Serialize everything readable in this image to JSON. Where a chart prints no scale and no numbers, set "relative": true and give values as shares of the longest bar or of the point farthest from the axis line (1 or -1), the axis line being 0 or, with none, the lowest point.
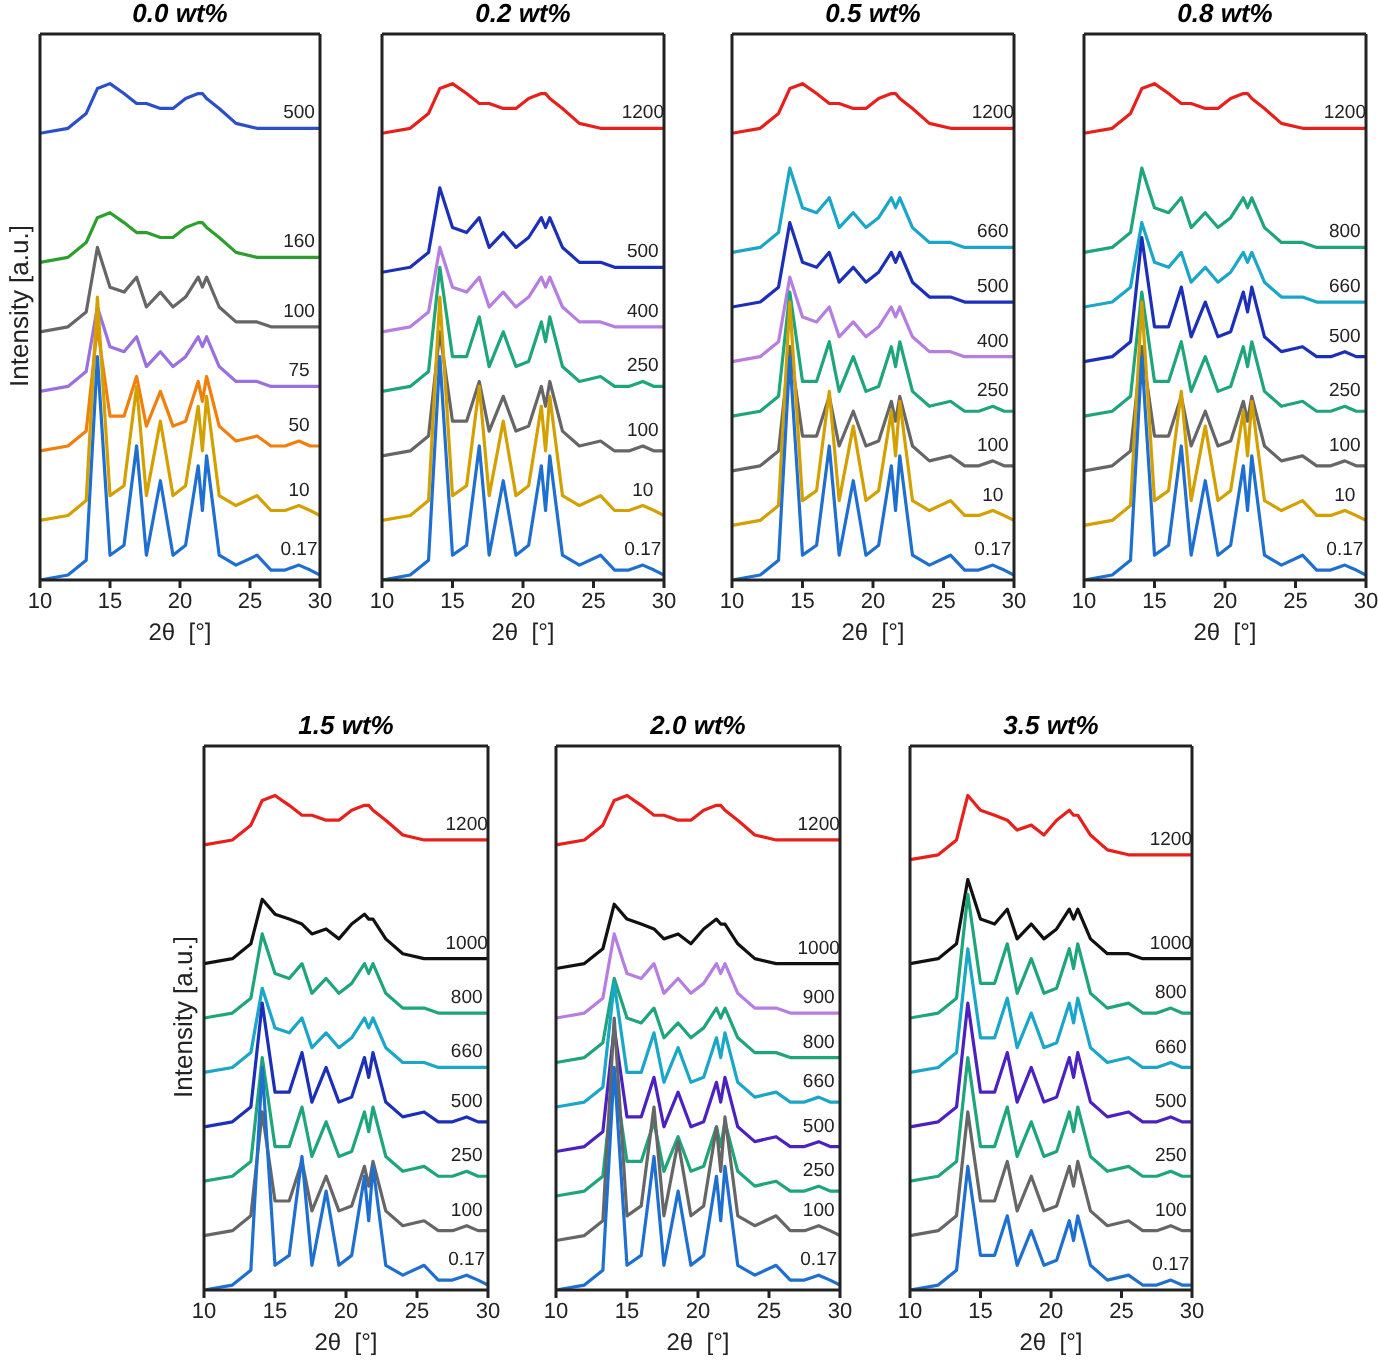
{
  "chart_data": [
    {
      "type": "line",
      "title": "0.0 wt%",
      "xlabel": "2θ  [°]",
      "ylabel": "Intensity  [a.u.]",
      "relative": true,
      "xlim": [
        10,
        30
      ],
      "xticks": [
        10,
        15,
        20,
        25,
        30
      ],
      "tick_labels": "x",
      "legend": false,
      "grid": false,
      "marker": "none",
      "x": [
        10,
        12,
        13.3,
        14.1,
        15,
        16,
        16.9,
        17.6,
        18.6,
        19.5,
        20.4,
        21.3,
        21.6,
        21.9,
        22.8,
        24,
        25.5,
        26.5,
        27.5,
        28.5,
        29.3,
        30
      ],
      "series": [
        {
          "name": "500",
          "color": "#2a4fc8",
          "values": [
            0.9,
            0.91,
            0.94,
            0.99,
            1,
            0.98,
            0.96,
            0.96,
            0.95,
            0.95,
            0.97,
            0.98,
            0.98,
            0.97,
            0.95,
            0.92,
            0.91,
            0.91,
            0.91,
            0.91,
            0.91,
            0.91
          ]
        },
        {
          "name": "160",
          "color": "#2ca02c",
          "values": [
            0.64,
            0.65,
            0.68,
            0.73,
            0.74,
            0.72,
            0.7,
            0.7,
            0.69,
            0.69,
            0.71,
            0.72,
            0.72,
            0.71,
            0.69,
            0.66,
            0.65,
            0.65,
            0.65,
            0.65,
            0.65,
            0.65
          ]
        },
        {
          "name": "100",
          "color": "#666666",
          "values": [
            0.5,
            0.51,
            0.54,
            0.67,
            0.59,
            0.58,
            0.61,
            0.55,
            0.58,
            0.55,
            0.57,
            0.61,
            0.59,
            0.61,
            0.55,
            0.52,
            0.52,
            0.51,
            0.51,
            0.51,
            0.51,
            0.51
          ]
        },
        {
          "name": "75",
          "color": "#9a6fe0",
          "values": [
            0.38,
            0.39,
            0.42,
            0.55,
            0.47,
            0.46,
            0.49,
            0.43,
            0.46,
            0.43,
            0.45,
            0.49,
            0.47,
            0.49,
            0.43,
            0.4,
            0.4,
            0.39,
            0.39,
            0.39,
            0.39,
            0.39
          ]
        },
        {
          "name": "50",
          "color": "#f07f0c",
          "values": [
            0.26,
            0.27,
            0.3,
            0.51,
            0.33,
            0.33,
            0.41,
            0.31,
            0.38,
            0.31,
            0.32,
            0.4,
            0.36,
            0.41,
            0.31,
            0.28,
            0.29,
            0.27,
            0.27,
            0.28,
            0.27,
            0.27
          ]
        },
        {
          "name": "10",
          "color": "#d4a000",
          "values": [
            0.12,
            0.13,
            0.16,
            0.57,
            0.17,
            0.19,
            0.39,
            0.17,
            0.32,
            0.17,
            0.19,
            0.35,
            0.26,
            0.37,
            0.17,
            0.15,
            0.17,
            0.14,
            0.14,
            0.15,
            0.14,
            0.13
          ]
        },
        {
          "name": "0.17",
          "color": "#1f6fd0",
          "values": [
            0,
            0.01,
            0.04,
            0.45,
            0.05,
            0.07,
            0.27,
            0.05,
            0.2,
            0.05,
            0.07,
            0.23,
            0.14,
            0.25,
            0.05,
            0.03,
            0.05,
            0.02,
            0.02,
            0.03,
            0.02,
            0.01
          ]
        }
      ]
    },
    {
      "type": "line",
      "title": "0.2 wt%",
      "xlabel": "2θ  [°]",
      "relative": true,
      "xlim": [
        10,
        30
      ],
      "xticks": [
        10,
        15,
        20,
        25,
        30
      ],
      "tick_labels": "x",
      "legend": false,
      "grid": false,
      "marker": "none",
      "x": [
        10,
        12,
        13.3,
        14.1,
        15,
        16,
        16.9,
        17.6,
        18.6,
        19.5,
        20.4,
        21.3,
        21.6,
        21.9,
        22.8,
        24,
        25.5,
        26.5,
        27.5,
        28.5,
        29.3,
        30
      ],
      "series": [
        {
          "name": "1200",
          "color": "#e8201c",
          "values": [
            0.9,
            0.91,
            0.94,
            0.99,
            1,
            0.98,
            0.96,
            0.96,
            0.95,
            0.95,
            0.97,
            0.98,
            0.98,
            0.97,
            0.95,
            0.92,
            0.91,
            0.91,
            0.91,
            0.91,
            0.91,
            0.91
          ]
        },
        {
          "name": "500",
          "color": "#1c2fb8",
          "values": [
            0.62,
            0.63,
            0.66,
            0.79,
            0.71,
            0.7,
            0.73,
            0.67,
            0.7,
            0.67,
            0.69,
            0.73,
            0.71,
            0.73,
            0.67,
            0.64,
            0.64,
            0.63,
            0.63,
            0.63,
            0.63,
            0.63
          ]
        },
        {
          "name": "400",
          "color": "#b57ee0",
          "values": [
            0.5,
            0.51,
            0.54,
            0.67,
            0.59,
            0.58,
            0.61,
            0.55,
            0.58,
            0.55,
            0.57,
            0.61,
            0.59,
            0.61,
            0.55,
            0.52,
            0.52,
            0.51,
            0.51,
            0.51,
            0.51,
            0.51
          ]
        },
        {
          "name": "250",
          "color": "#1fa57a",
          "values": [
            0.38,
            0.39,
            0.42,
            0.63,
            0.45,
            0.45,
            0.53,
            0.43,
            0.5,
            0.43,
            0.44,
            0.52,
            0.48,
            0.53,
            0.43,
            0.4,
            0.41,
            0.39,
            0.39,
            0.4,
            0.39,
            0.39
          ]
        },
        {
          "name": "100",
          "color": "#666666",
          "values": [
            0.25,
            0.26,
            0.29,
            0.5,
            0.32,
            0.32,
            0.4,
            0.3,
            0.37,
            0.3,
            0.31,
            0.39,
            0.35,
            0.4,
            0.3,
            0.27,
            0.28,
            0.26,
            0.26,
            0.27,
            0.26,
            0.26
          ]
        },
        {
          "name": "10",
          "color": "#d4a000",
          "values": [
            0.12,
            0.13,
            0.16,
            0.57,
            0.17,
            0.19,
            0.39,
            0.17,
            0.32,
            0.17,
            0.19,
            0.35,
            0.26,
            0.37,
            0.17,
            0.15,
            0.17,
            0.14,
            0.14,
            0.15,
            0.14,
            0.13
          ]
        },
        {
          "name": "0.17",
          "color": "#1f6fd0",
          "values": [
            0,
            0.01,
            0.04,
            0.45,
            0.05,
            0.07,
            0.27,
            0.05,
            0.2,
            0.05,
            0.07,
            0.23,
            0.14,
            0.25,
            0.05,
            0.03,
            0.05,
            0.02,
            0.02,
            0.03,
            0.02,
            0.01
          ]
        }
      ]
    },
    {
      "type": "line",
      "title": "0.5 wt%",
      "xlabel": "2θ  [°]",
      "relative": true,
      "xlim": [
        10,
        30
      ],
      "xticks": [
        10,
        15,
        20,
        25,
        30
      ],
      "tick_labels": "x",
      "legend": false,
      "grid": false,
      "marker": "none",
      "x": [
        10,
        12,
        13.3,
        14.1,
        15,
        16,
        16.9,
        17.6,
        18.6,
        19.5,
        20.4,
        21.3,
        21.6,
        21.9,
        22.8,
        24,
        25.5,
        26.5,
        27.5,
        28.5,
        29.3,
        30
      ],
      "series": [
        {
          "name": "1200",
          "color": "#e8201c",
          "values": [
            0.9,
            0.91,
            0.94,
            0.99,
            1,
            0.98,
            0.96,
            0.96,
            0.95,
            0.95,
            0.97,
            0.98,
            0.98,
            0.97,
            0.95,
            0.92,
            0.91,
            0.91,
            0.91,
            0.91,
            0.91,
            0.91
          ]
        },
        {
          "name": "660",
          "color": "#1aa6c8",
          "values": [
            0.66,
            0.67,
            0.7,
            0.83,
            0.75,
            0.74,
            0.77,
            0.71,
            0.74,
            0.71,
            0.73,
            0.77,
            0.75,
            0.77,
            0.71,
            0.68,
            0.68,
            0.67,
            0.67,
            0.67,
            0.67,
            0.67
          ]
        },
        {
          "name": "500",
          "color": "#1c2fb8",
          "values": [
            0.55,
            0.56,
            0.59,
            0.72,
            0.64,
            0.63,
            0.66,
            0.6,
            0.63,
            0.6,
            0.62,
            0.66,
            0.64,
            0.66,
            0.6,
            0.57,
            0.57,
            0.56,
            0.56,
            0.56,
            0.56,
            0.56
          ]
        },
        {
          "name": "400",
          "color": "#b57ee0",
          "values": [
            0.44,
            0.45,
            0.48,
            0.61,
            0.53,
            0.52,
            0.55,
            0.49,
            0.52,
            0.49,
            0.51,
            0.55,
            0.53,
            0.55,
            0.49,
            0.46,
            0.46,
            0.45,
            0.45,
            0.45,
            0.45,
            0.45
          ]
        },
        {
          "name": "250",
          "color": "#1fa57a",
          "values": [
            0.33,
            0.34,
            0.37,
            0.58,
            0.4,
            0.4,
            0.48,
            0.38,
            0.45,
            0.38,
            0.39,
            0.47,
            0.43,
            0.48,
            0.38,
            0.35,
            0.36,
            0.34,
            0.34,
            0.35,
            0.34,
            0.34
          ]
        },
        {
          "name": "100",
          "color": "#666666",
          "values": [
            0.22,
            0.23,
            0.26,
            0.47,
            0.29,
            0.29,
            0.37,
            0.27,
            0.34,
            0.27,
            0.28,
            0.36,
            0.32,
            0.37,
            0.27,
            0.24,
            0.25,
            0.23,
            0.23,
            0.24,
            0.23,
            0.23
          ]
        },
        {
          "name": "10",
          "color": "#d4a000",
          "values": [
            0.11,
            0.12,
            0.15,
            0.56,
            0.16,
            0.18,
            0.38,
            0.16,
            0.31,
            0.16,
            0.18,
            0.34,
            0.25,
            0.36,
            0.16,
            0.14,
            0.16,
            0.13,
            0.13,
            0.14,
            0.13,
            0.12
          ]
        },
        {
          "name": "0.17",
          "color": "#1f6fd0",
          "values": [
            0,
            0.01,
            0.04,
            0.45,
            0.05,
            0.07,
            0.27,
            0.05,
            0.2,
            0.05,
            0.07,
            0.23,
            0.14,
            0.25,
            0.05,
            0.03,
            0.05,
            0.02,
            0.02,
            0.03,
            0.02,
            0.01
          ]
        }
      ]
    },
    {
      "type": "line",
      "title": "0.8 wt%",
      "xlabel": "2θ  [°]",
      "relative": true,
      "xlim": [
        10,
        30
      ],
      "xticks": [
        10,
        15,
        20,
        25,
        30
      ],
      "tick_labels": "x",
      "legend": false,
      "grid": false,
      "marker": "none",
      "x": [
        10,
        12,
        13.3,
        14.1,
        15,
        16,
        16.9,
        17.6,
        18.6,
        19.5,
        20.4,
        21.3,
        21.6,
        21.9,
        22.8,
        24,
        25.5,
        26.5,
        27.5,
        28.5,
        29.3,
        30
      ],
      "series": [
        {
          "name": "1200",
          "color": "#e8201c",
          "values": [
            0.9,
            0.91,
            0.94,
            0.99,
            1,
            0.98,
            0.96,
            0.96,
            0.95,
            0.95,
            0.97,
            0.98,
            0.98,
            0.97,
            0.95,
            0.92,
            0.91,
            0.91,
            0.91,
            0.91,
            0.91,
            0.91
          ]
        },
        {
          "name": "800",
          "color": "#1fa57a",
          "values": [
            0.66,
            0.67,
            0.7,
            0.83,
            0.75,
            0.74,
            0.77,
            0.71,
            0.74,
            0.71,
            0.73,
            0.77,
            0.75,
            0.77,
            0.71,
            0.68,
            0.68,
            0.67,
            0.67,
            0.67,
            0.67,
            0.67
          ]
        },
        {
          "name": "660",
          "color": "#1aa6c8",
          "values": [
            0.55,
            0.56,
            0.59,
            0.72,
            0.64,
            0.63,
            0.66,
            0.6,
            0.63,
            0.6,
            0.62,
            0.66,
            0.64,
            0.66,
            0.6,
            0.57,
            0.57,
            0.56,
            0.56,
            0.56,
            0.56,
            0.56
          ]
        },
        {
          "name": "500",
          "color": "#1c2fb8",
          "values": [
            0.44,
            0.45,
            0.48,
            0.69,
            0.51,
            0.51,
            0.59,
            0.49,
            0.56,
            0.49,
            0.5,
            0.58,
            0.54,
            0.59,
            0.49,
            0.46,
            0.47,
            0.45,
            0.45,
            0.46,
            0.45,
            0.45
          ]
        },
        {
          "name": "250",
          "color": "#1fa57a",
          "values": [
            0.33,
            0.34,
            0.37,
            0.58,
            0.4,
            0.4,
            0.48,
            0.38,
            0.45,
            0.38,
            0.39,
            0.47,
            0.43,
            0.48,
            0.38,
            0.35,
            0.36,
            0.34,
            0.34,
            0.35,
            0.34,
            0.34
          ]
        },
        {
          "name": "100",
          "color": "#666666",
          "values": [
            0.22,
            0.23,
            0.26,
            0.47,
            0.29,
            0.29,
            0.37,
            0.27,
            0.34,
            0.27,
            0.28,
            0.36,
            0.32,
            0.37,
            0.27,
            0.24,
            0.25,
            0.23,
            0.23,
            0.24,
            0.23,
            0.23
          ]
        },
        {
          "name": "10",
          "color": "#d4a000",
          "values": [
            0.11,
            0.12,
            0.15,
            0.56,
            0.16,
            0.18,
            0.38,
            0.16,
            0.31,
            0.16,
            0.18,
            0.34,
            0.25,
            0.36,
            0.16,
            0.14,
            0.16,
            0.13,
            0.13,
            0.14,
            0.13,
            0.12
          ]
        },
        {
          "name": "0.17",
          "color": "#1f6fd0",
          "values": [
            0,
            0.01,
            0.04,
            0.45,
            0.05,
            0.07,
            0.27,
            0.05,
            0.2,
            0.05,
            0.07,
            0.23,
            0.14,
            0.25,
            0.05,
            0.03,
            0.05,
            0.02,
            0.02,
            0.03,
            0.02,
            0.01
          ]
        }
      ]
    },
    {
      "type": "line",
      "title": "1.5 wt%",
      "xlabel": "2θ  [°]",
      "ylabel": "Intensity  [a.u.]",
      "relative": true,
      "xlim": [
        10,
        30
      ],
      "xticks": [
        10,
        15,
        20,
        25,
        30
      ],
      "tick_labels": "x",
      "legend": false,
      "grid": false,
      "marker": "none",
      "x": [
        10,
        12,
        13.3,
        14.1,
        15,
        16,
        16.9,
        17.6,
        18.6,
        19.5,
        20.4,
        21.3,
        21.6,
        21.9,
        22.8,
        24,
        25.5,
        26.5,
        27.5,
        28.5,
        29.3,
        30
      ],
      "series": [
        {
          "name": "1200",
          "color": "#e8201c",
          "values": [
            0.9,
            0.91,
            0.94,
            0.99,
            1,
            0.98,
            0.96,
            0.96,
            0.95,
            0.95,
            0.97,
            0.98,
            0.98,
            0.97,
            0.95,
            0.92,
            0.91,
            0.91,
            0.91,
            0.91,
            0.91,
            0.91
          ]
        },
        {
          "name": "1000",
          "color": "#111111",
          "values": [
            0.66,
            0.67,
            0.7,
            0.79,
            0.76,
            0.75,
            0.74,
            0.72,
            0.73,
            0.71,
            0.74,
            0.76,
            0.75,
            0.75,
            0.71,
            0.68,
            0.67,
            0.67,
            0.67,
            0.67,
            0.67,
            0.67
          ]
        },
        {
          "name": "800",
          "color": "#1fa57a",
          "values": [
            0.55,
            0.56,
            0.59,
            0.72,
            0.64,
            0.63,
            0.66,
            0.6,
            0.63,
            0.6,
            0.62,
            0.66,
            0.64,
            0.66,
            0.6,
            0.57,
            0.57,
            0.56,
            0.56,
            0.56,
            0.56,
            0.56
          ]
        },
        {
          "name": "660",
          "color": "#1aa6c8",
          "values": [
            0.44,
            0.45,
            0.48,
            0.61,
            0.53,
            0.52,
            0.55,
            0.49,
            0.52,
            0.49,
            0.51,
            0.55,
            0.53,
            0.55,
            0.49,
            0.46,
            0.46,
            0.45,
            0.45,
            0.45,
            0.45,
            0.45
          ]
        },
        {
          "name": "500",
          "color": "#1c2fb8",
          "values": [
            0.33,
            0.34,
            0.37,
            0.58,
            0.4,
            0.4,
            0.48,
            0.38,
            0.45,
            0.38,
            0.39,
            0.47,
            0.43,
            0.48,
            0.38,
            0.35,
            0.36,
            0.34,
            0.34,
            0.35,
            0.34,
            0.34
          ]
        },
        {
          "name": "250",
          "color": "#1fa57a",
          "values": [
            0.22,
            0.23,
            0.26,
            0.47,
            0.29,
            0.29,
            0.37,
            0.27,
            0.34,
            0.27,
            0.28,
            0.36,
            0.32,
            0.37,
            0.27,
            0.24,
            0.25,
            0.23,
            0.23,
            0.24,
            0.23,
            0.23
          ]
        },
        {
          "name": "100",
          "color": "#666666",
          "values": [
            0.11,
            0.12,
            0.15,
            0.36,
            0.18,
            0.18,
            0.26,
            0.16,
            0.23,
            0.16,
            0.17,
            0.25,
            0.21,
            0.26,
            0.16,
            0.13,
            0.14,
            0.12,
            0.12,
            0.13,
            0.12,
            0.12
          ]
        },
        {
          "name": "0.17",
          "color": "#1f6fd0",
          "values": [
            0,
            0.01,
            0.04,
            0.45,
            0.05,
            0.07,
            0.27,
            0.05,
            0.2,
            0.05,
            0.07,
            0.23,
            0.14,
            0.25,
            0.05,
            0.03,
            0.05,
            0.02,
            0.02,
            0.03,
            0.02,
            0.01
          ]
        }
      ]
    },
    {
      "type": "line",
      "title": "2.0 wt%",
      "xlabel": "2θ  [°]",
      "relative": true,
      "xlim": [
        10,
        30
      ],
      "xticks": [
        10,
        15,
        20,
        25,
        30
      ],
      "tick_labels": "x",
      "legend": false,
      "grid": false,
      "marker": "none",
      "x": [
        10,
        12,
        13.3,
        14.1,
        15,
        16,
        16.9,
        17.6,
        18.6,
        19.5,
        20.4,
        21.3,
        21.6,
        21.9,
        22.8,
        24,
        25.5,
        26.5,
        27.5,
        28.5,
        29.3,
        30
      ],
      "series": [
        {
          "name": "1200",
          "color": "#e8201c",
          "values": [
            0.9,
            0.91,
            0.94,
            0.99,
            1,
            0.98,
            0.96,
            0.96,
            0.95,
            0.95,
            0.97,
            0.98,
            0.98,
            0.97,
            0.95,
            0.92,
            0.91,
            0.91,
            0.91,
            0.91,
            0.91,
            0.91
          ]
        },
        {
          "name": "1000",
          "color": "#111111",
          "values": [
            0.65,
            0.66,
            0.69,
            0.78,
            0.75,
            0.74,
            0.73,
            0.71,
            0.72,
            0.7,
            0.73,
            0.75,
            0.74,
            0.74,
            0.7,
            0.67,
            0.66,
            0.66,
            0.66,
            0.66,
            0.66,
            0.66
          ]
        },
        {
          "name": "900",
          "color": "#b57ee0",
          "values": [
            0.55,
            0.56,
            0.59,
            0.72,
            0.64,
            0.63,
            0.66,
            0.6,
            0.63,
            0.6,
            0.62,
            0.66,
            0.64,
            0.66,
            0.6,
            0.57,
            0.57,
            0.56,
            0.56,
            0.56,
            0.56,
            0.56
          ]
        },
        {
          "name": "800",
          "color": "#1fa57a",
          "values": [
            0.46,
            0.47,
            0.5,
            0.63,
            0.55,
            0.54,
            0.57,
            0.51,
            0.54,
            0.51,
            0.53,
            0.57,
            0.55,
            0.57,
            0.51,
            0.48,
            0.48,
            0.47,
            0.47,
            0.47,
            0.47,
            0.47
          ]
        },
        {
          "name": "660",
          "color": "#1aa6c8",
          "values": [
            0.37,
            0.38,
            0.41,
            0.62,
            0.44,
            0.44,
            0.52,
            0.42,
            0.49,
            0.42,
            0.43,
            0.51,
            0.47,
            0.52,
            0.42,
            0.39,
            0.4,
            0.38,
            0.38,
            0.39,
            0.38,
            0.38
          ]
        },
        {
          "name": "500",
          "color": "#4b22c0",
          "values": [
            0.28,
            0.29,
            0.32,
            0.53,
            0.35,
            0.35,
            0.43,
            0.33,
            0.4,
            0.33,
            0.34,
            0.42,
            0.38,
            0.43,
            0.33,
            0.3,
            0.31,
            0.29,
            0.29,
            0.3,
            0.29,
            0.29
          ]
        },
        {
          "name": "250",
          "color": "#1fa57a",
          "values": [
            0.19,
            0.2,
            0.23,
            0.44,
            0.26,
            0.26,
            0.34,
            0.24,
            0.31,
            0.24,
            0.25,
            0.33,
            0.29,
            0.34,
            0.24,
            0.21,
            0.22,
            0.2,
            0.2,
            0.21,
            0.2,
            0.2
          ]
        },
        {
          "name": "100",
          "color": "#666666",
          "values": [
            0.1,
            0.11,
            0.14,
            0.55,
            0.15,
            0.17,
            0.37,
            0.15,
            0.3,
            0.15,
            0.17,
            0.33,
            0.24,
            0.35,
            0.15,
            0.13,
            0.15,
            0.12,
            0.12,
            0.13,
            0.12,
            0.11
          ]
        },
        {
          "name": "0.17",
          "color": "#1f6fd0",
          "values": [
            0,
            0.01,
            0.04,
            0.45,
            0.05,
            0.07,
            0.27,
            0.05,
            0.2,
            0.05,
            0.07,
            0.23,
            0.14,
            0.25,
            0.05,
            0.03,
            0.05,
            0.02,
            0.02,
            0.03,
            0.02,
            0.01
          ]
        }
      ]
    },
    {
      "type": "line",
      "title": "3.5 wt%",
      "xlabel": "2θ  [°]",
      "relative": true,
      "xlim": [
        10,
        30
      ],
      "xticks": [
        10,
        15,
        20,
        25,
        30
      ],
      "tick_labels": "x",
      "legend": false,
      "grid": false,
      "marker": "none",
      "x": [
        10,
        12,
        13.3,
        14.1,
        15,
        16,
        16.9,
        17.6,
        18.6,
        19.5,
        20.4,
        21.3,
        21.6,
        21.9,
        22.8,
        24,
        25.5,
        26.5,
        27.5,
        28.5,
        29.3,
        30
      ],
      "series": [
        {
          "name": "1200",
          "color": "#e8201c",
          "values": [
            0.87,
            0.88,
            0.91,
            1,
            0.97,
            0.96,
            0.95,
            0.93,
            0.94,
            0.92,
            0.95,
            0.97,
            0.96,
            0.96,
            0.92,
            0.89,
            0.88,
            0.88,
            0.88,
            0.88,
            0.88,
            0.88
          ]
        },
        {
          "name": "1000",
          "color": "#111111",
          "values": [
            0.66,
            0.67,
            0.7,
            0.83,
            0.75,
            0.74,
            0.77,
            0.71,
            0.74,
            0.71,
            0.73,
            0.77,
            0.75,
            0.77,
            0.71,
            0.68,
            0.68,
            0.67,
            0.67,
            0.67,
            0.67,
            0.67
          ]
        },
        {
          "name": "800",
          "color": "#1fa57a",
          "values": [
            0.55,
            0.56,
            0.59,
            0.8,
            0.62,
            0.62,
            0.7,
            0.6,
            0.67,
            0.6,
            0.61,
            0.69,
            0.65,
            0.7,
            0.6,
            0.57,
            0.58,
            0.56,
            0.56,
            0.57,
            0.56,
            0.56
          ]
        },
        {
          "name": "660",
          "color": "#1aa6c8",
          "values": [
            0.44,
            0.45,
            0.48,
            0.69,
            0.51,
            0.51,
            0.59,
            0.49,
            0.56,
            0.49,
            0.5,
            0.58,
            0.54,
            0.59,
            0.49,
            0.46,
            0.47,
            0.45,
            0.45,
            0.46,
            0.45,
            0.45
          ]
        },
        {
          "name": "500",
          "color": "#4b22c0",
          "values": [
            0.33,
            0.34,
            0.37,
            0.58,
            0.4,
            0.4,
            0.48,
            0.38,
            0.45,
            0.38,
            0.39,
            0.47,
            0.43,
            0.48,
            0.38,
            0.35,
            0.36,
            0.34,
            0.34,
            0.35,
            0.34,
            0.34
          ]
        },
        {
          "name": "250",
          "color": "#1fa57a",
          "values": [
            0.22,
            0.23,
            0.26,
            0.47,
            0.29,
            0.29,
            0.37,
            0.27,
            0.34,
            0.27,
            0.28,
            0.36,
            0.32,
            0.37,
            0.27,
            0.24,
            0.25,
            0.23,
            0.23,
            0.24,
            0.23,
            0.23
          ]
        },
        {
          "name": "100",
          "color": "#666666",
          "values": [
            0.11,
            0.12,
            0.15,
            0.36,
            0.18,
            0.18,
            0.26,
            0.16,
            0.23,
            0.16,
            0.17,
            0.25,
            0.21,
            0.26,
            0.16,
            0.13,
            0.14,
            0.12,
            0.12,
            0.13,
            0.12,
            0.12
          ]
        },
        {
          "name": "0.17",
          "color": "#1f6fd0",
          "values": [
            0,
            0.01,
            0.04,
            0.25,
            0.07,
            0.07,
            0.15,
            0.05,
            0.12,
            0.05,
            0.06,
            0.14,
            0.1,
            0.15,
            0.05,
            0.02,
            0.03,
            0.01,
            0.01,
            0.02,
            0.01,
            0.01
          ]
        }
      ]
    }
  ]
}
